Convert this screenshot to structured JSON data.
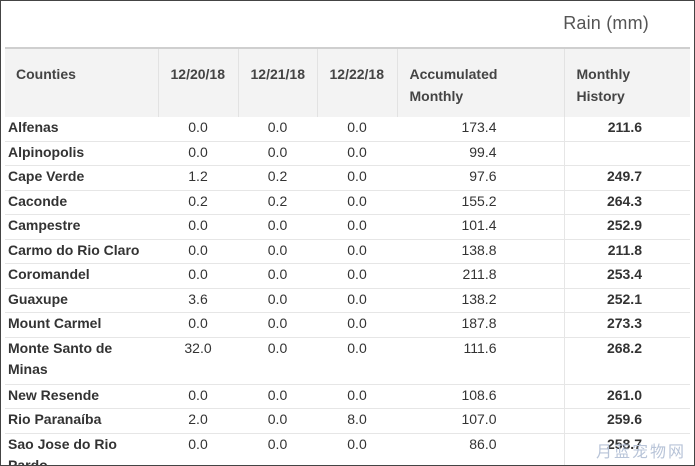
{
  "caption": "Rain (mm)",
  "headers": {
    "county": "Counties",
    "d1": "12/20/18",
    "d2": "12/21/18",
    "d3": "12/22/18",
    "accumulated_line1": "Accumulated",
    "accumulated_line2": "Monthly",
    "history_line1": "Monthly",
    "history_line2": "History"
  },
  "rows": [
    {
      "county": "Alfenas",
      "d1": "0.0",
      "d2": "0.0",
      "d3": "0.0",
      "acc": "173.4",
      "hist": "211.6"
    },
    {
      "county": "Alpinopolis",
      "d1": "0.0",
      "d2": "0.0",
      "d3": "0.0",
      "acc": "99.4",
      "hist": ""
    },
    {
      "county": "Cape Verde",
      "d1": "1.2",
      "d2": "0.2",
      "d3": "0.0",
      "acc": "97.6",
      "hist": "249.7"
    },
    {
      "county": "Caconde",
      "d1": "0.2",
      "d2": "0.2",
      "d3": "0.0",
      "acc": "155.2",
      "hist": "264.3"
    },
    {
      "county": "Campestre",
      "d1": "0.0",
      "d2": "0.0",
      "d3": "0.0",
      "acc": "101.4",
      "hist": "252.9"
    },
    {
      "county": "Carmo do Rio Claro",
      "d1": "0.0",
      "d2": "0.0",
      "d3": "0.0",
      "acc": "138.8",
      "hist": "211.8"
    },
    {
      "county": "Coromandel",
      "d1": "0.0",
      "d2": "0.0",
      "d3": "0.0",
      "acc": "211.8",
      "hist": "253.4"
    },
    {
      "county": "Guaxupe",
      "d1": "3.6",
      "d2": "0.0",
      "d3": "0.0",
      "acc": "138.2",
      "hist": "252.1"
    },
    {
      "county": "Mount Carmel",
      "d1": "0.0",
      "d2": "0.0",
      "d3": "0.0",
      "acc": "187.8",
      "hist": "273.3"
    },
    {
      "county": "Monte Santo de Minas",
      "d1": "32.0",
      "d2": "0.0",
      "d3": "0.0",
      "acc": "111.6",
      "hist": "268.2"
    },
    {
      "county": "New Resende",
      "d1": "0.0",
      "d2": "0.0",
      "d3": "0.0",
      "acc": "108.6",
      "hist": "261.0"
    },
    {
      "county": "Rio Paranaíba",
      "d1": "2.0",
      "d2": "0.0",
      "d3": "8.0",
      "acc": "107.0",
      "hist": "259.6"
    },
    {
      "county": "Sao Jose do Rio Pardo",
      "d1": "0.0",
      "d2": "0.0",
      "d3": "0.0",
      "acc": "86.0",
      "hist": "258.7"
    }
  ],
  "watermark": "月蓝宠物网"
}
